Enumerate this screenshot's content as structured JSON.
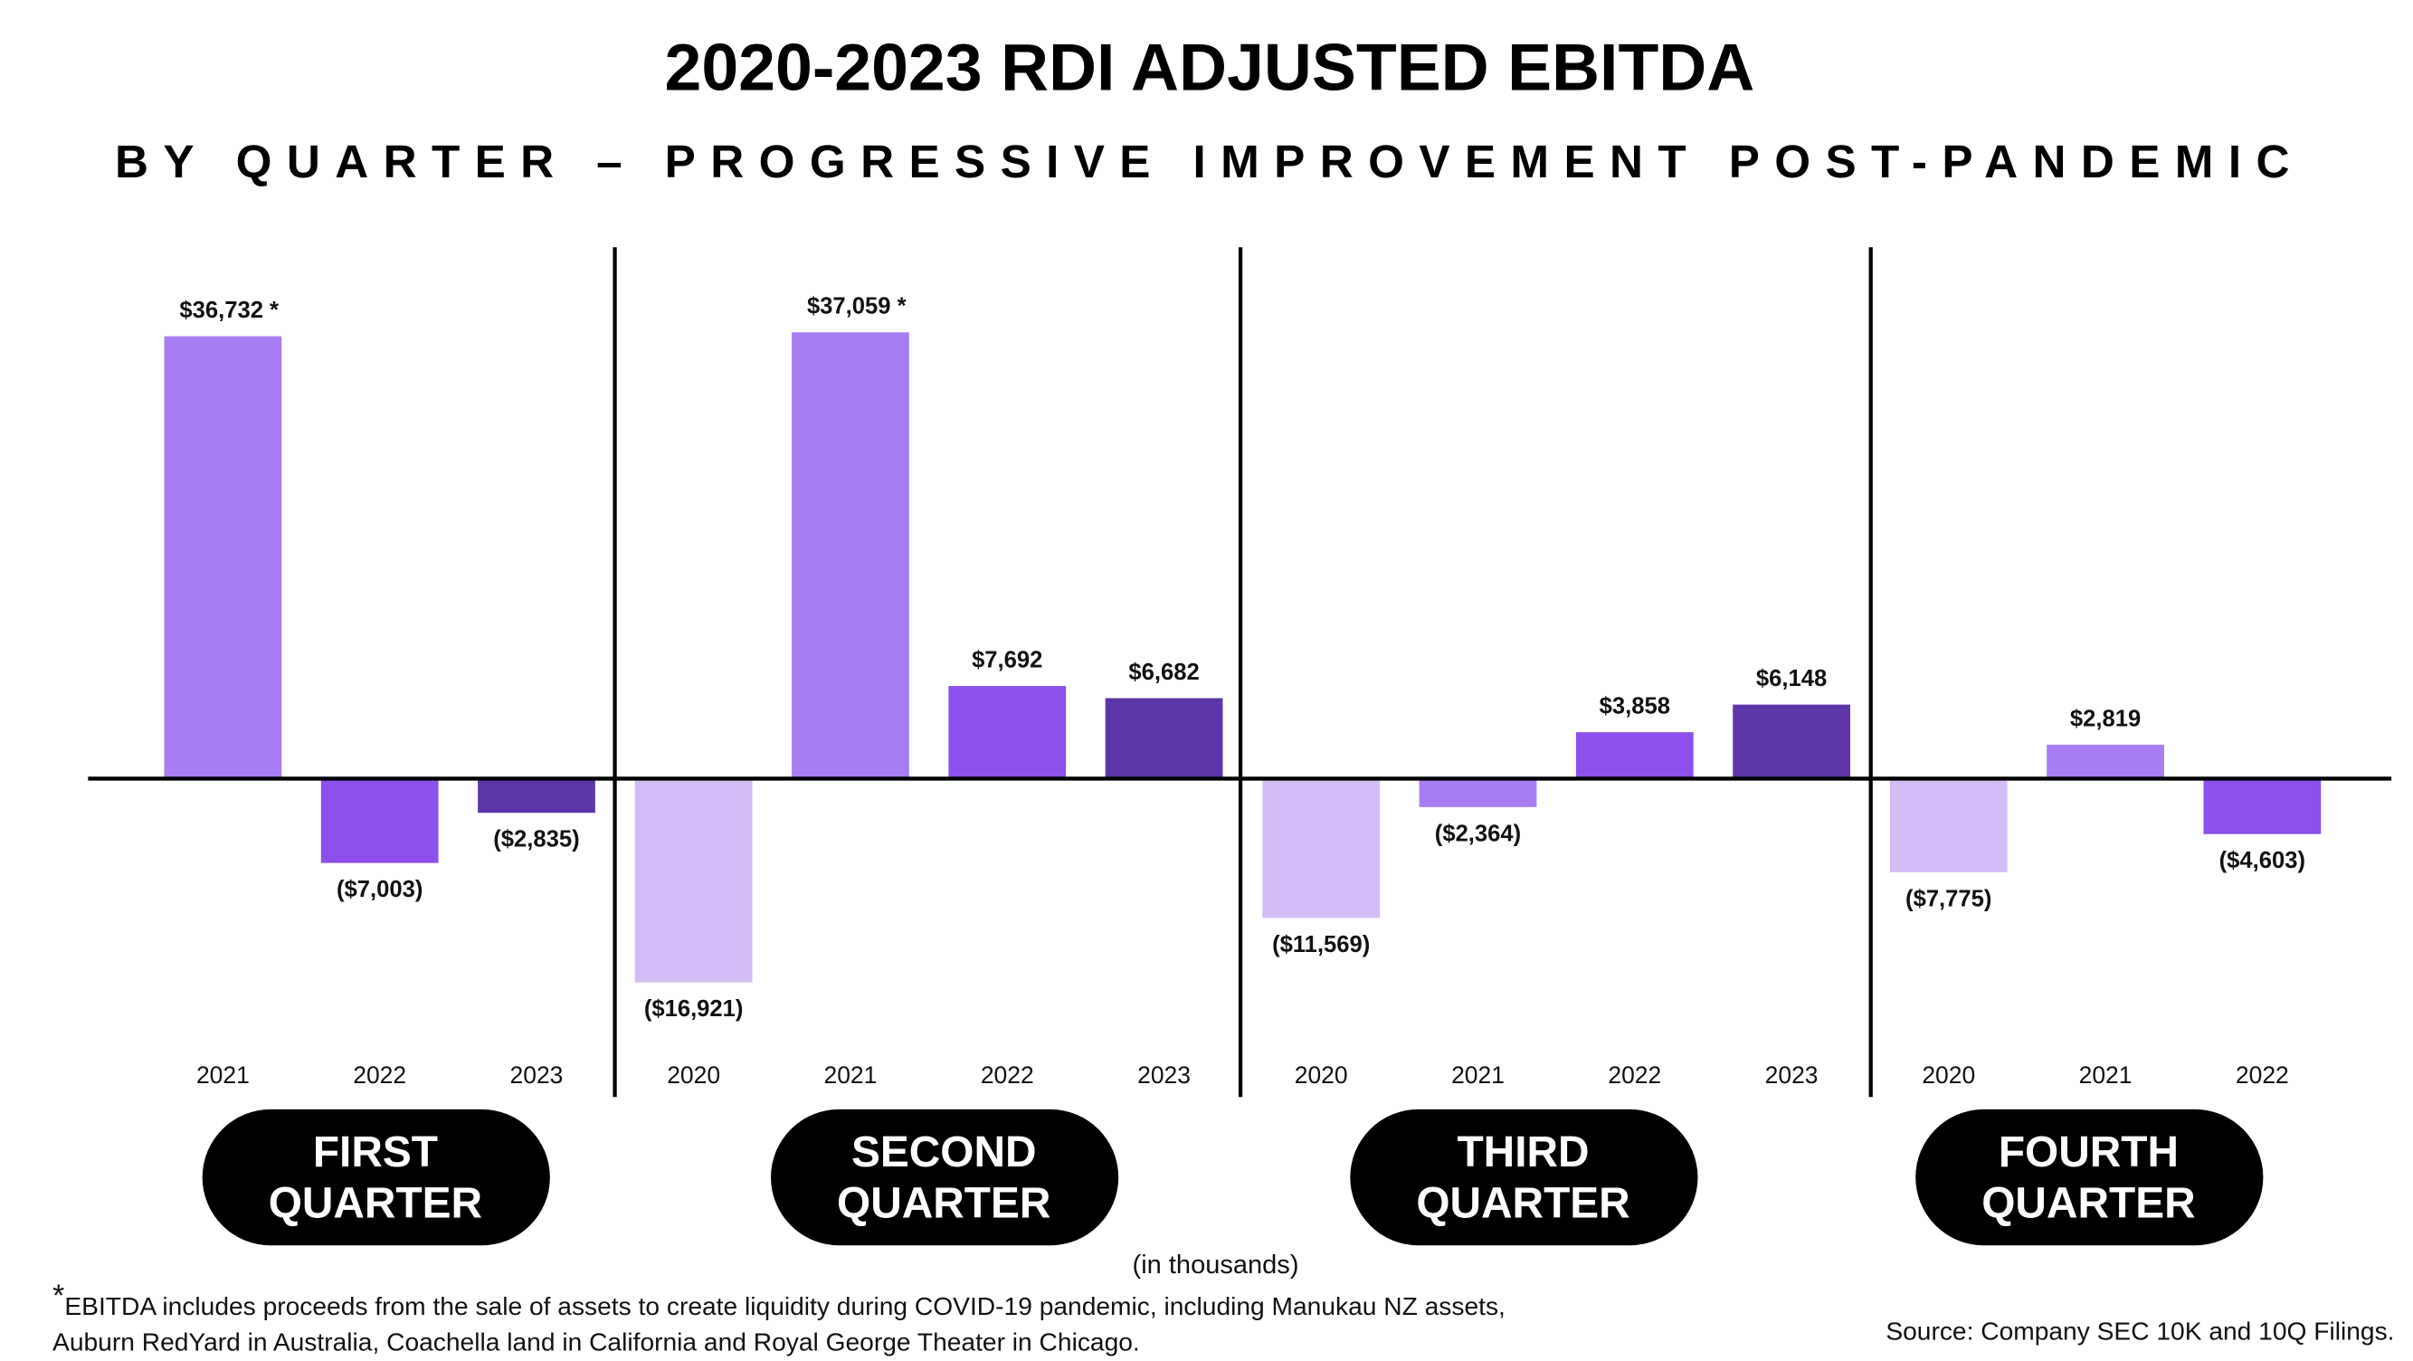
{
  "chart_data": {
    "type": "bar",
    "title": "2020-2023 RDI ADJUSTED EBITDA",
    "subtitle": "BY QUARTER – PROGRESSIVE IMPROVEMENT POST-PANDEMIC",
    "units_note": "(in thousands)",
    "footnote_marker": "*",
    "footnote": "EBITDA includes proceeds from the sale of assets to create liquidity during COVID-19 pandemic, including Manukau NZ assets, Auburn RedYard in Australia, Coachella land in California and Royal George Theater in Chicago.",
    "source": "Source: Company SEC 10K and 10Q Filings.",
    "categories": [
      "FIRST QUARTER",
      "SECOND QUARTER",
      "THIRD QUARTER",
      "FOURTH QUARTER"
    ],
    "ylim": [
      -24000,
      44000
    ],
    "series": [
      {
        "name": "2020",
        "color": "#d4bdf7",
        "values": [
          null,
          -16921,
          -11569,
          -7775
        ],
        "value_labels": [
          null,
          "($16,921)",
          "($11,569)",
          "($7,775)"
        ]
      },
      {
        "name": "2021",
        "color": "#a87df3",
        "values": [
          36732,
          37059,
          -2364,
          2819
        ],
        "value_labels": [
          "$36,732 *",
          "$37,059 *",
          "($2,364)",
          "$2,819"
        ]
      },
      {
        "name": "2022",
        "color": "#8d50ea",
        "values": [
          -7003,
          7692,
          3858,
          -4603
        ],
        "value_labels": [
          "($7,003)",
          "$7,692",
          "$3,858",
          "($4,603)"
        ]
      },
      {
        "name": "2023",
        "color": "#5c36a6",
        "values": [
          -2835,
          6682,
          6148,
          null
        ],
        "value_labels": [
          "($2,835)",
          "$6,682",
          "$6,148",
          null
        ]
      }
    ]
  }
}
